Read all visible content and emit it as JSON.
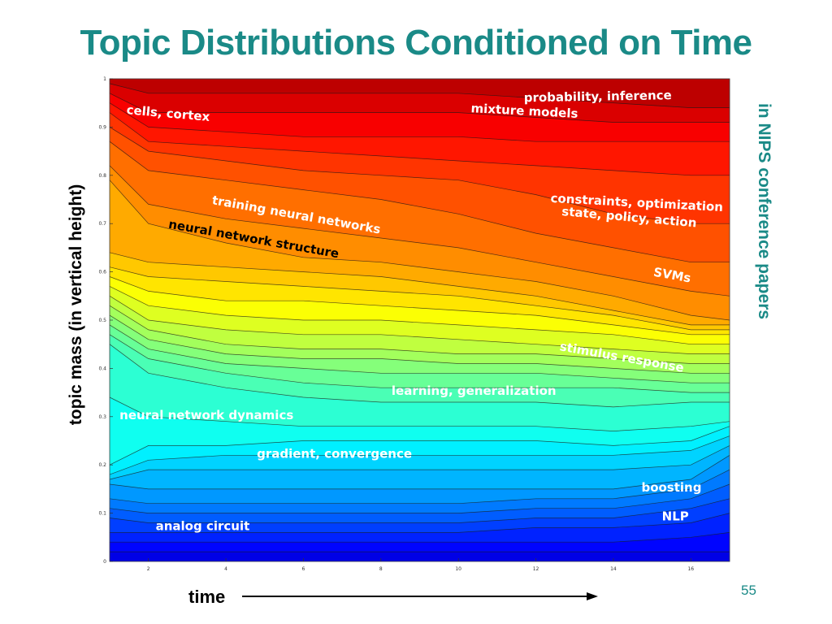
{
  "slide": {
    "title": "Topic Distributions Conditioned on Time",
    "side_note": "in NIPS conference papers",
    "page_number": "55",
    "accent_color": "#1a8a87"
  },
  "chart_data": {
    "type": "area",
    "stacked": true,
    "normalized": true,
    "xlabel": "time",
    "ylabel": "topic mass (in vertical height)",
    "xlim": [
      1,
      17
    ],
    "ylim": [
      0,
      1
    ],
    "x": [
      1,
      2,
      4,
      6,
      8,
      10,
      12,
      14,
      16,
      17
    ],
    "x_ticks": [
      2,
      4,
      6,
      8,
      10,
      12,
      14,
      16
    ],
    "y_ticks": [
      0,
      0.1,
      0.2,
      0.3,
      0.4,
      0.5,
      0.6,
      0.7,
      0.8,
      0.9,
      1
    ],
    "grid": false,
    "colormap": "jet",
    "boundaries": [
      [
        0.02,
        0.02,
        0.02,
        0.02,
        0.02,
        0.02,
        0.02,
        0.02,
        0.02,
        0.02
      ],
      [
        0.04,
        0.04,
        0.04,
        0.04,
        0.04,
        0.04,
        0.04,
        0.04,
        0.05,
        0.06
      ],
      [
        0.06,
        0.06,
        0.06,
        0.06,
        0.06,
        0.06,
        0.07,
        0.07,
        0.08,
        0.1
      ],
      [
        0.09,
        0.08,
        0.08,
        0.08,
        0.08,
        0.08,
        0.09,
        0.09,
        0.11,
        0.13
      ],
      [
        0.11,
        0.1,
        0.1,
        0.1,
        0.1,
        0.1,
        0.11,
        0.11,
        0.13,
        0.16
      ],
      [
        0.13,
        0.12,
        0.12,
        0.12,
        0.12,
        0.12,
        0.13,
        0.13,
        0.15,
        0.19
      ],
      [
        0.16,
        0.15,
        0.15,
        0.15,
        0.15,
        0.15,
        0.15,
        0.15,
        0.17,
        0.22
      ],
      [
        0.17,
        0.19,
        0.19,
        0.19,
        0.19,
        0.19,
        0.19,
        0.19,
        0.2,
        0.24
      ],
      [
        0.18,
        0.21,
        0.22,
        0.22,
        0.22,
        0.22,
        0.22,
        0.22,
        0.23,
        0.26
      ],
      [
        0.2,
        0.24,
        0.24,
        0.25,
        0.25,
        0.25,
        0.25,
        0.24,
        0.25,
        0.28
      ],
      [
        0.34,
        0.3,
        0.29,
        0.28,
        0.28,
        0.28,
        0.28,
        0.27,
        0.28,
        0.29
      ],
      [
        0.45,
        0.39,
        0.36,
        0.34,
        0.33,
        0.33,
        0.33,
        0.32,
        0.33,
        0.33
      ],
      [
        0.47,
        0.42,
        0.39,
        0.37,
        0.36,
        0.36,
        0.36,
        0.36,
        0.35,
        0.35
      ],
      [
        0.49,
        0.44,
        0.41,
        0.4,
        0.39,
        0.39,
        0.39,
        0.38,
        0.37,
        0.37
      ],
      [
        0.51,
        0.46,
        0.43,
        0.42,
        0.42,
        0.41,
        0.41,
        0.4,
        0.39,
        0.39
      ],
      [
        0.53,
        0.48,
        0.45,
        0.44,
        0.44,
        0.43,
        0.43,
        0.42,
        0.41,
        0.41
      ],
      [
        0.55,
        0.5,
        0.48,
        0.47,
        0.47,
        0.46,
        0.45,
        0.44,
        0.43,
        0.43
      ],
      [
        0.57,
        0.53,
        0.51,
        0.5,
        0.5,
        0.49,
        0.48,
        0.47,
        0.45,
        0.45
      ],
      [
        0.59,
        0.56,
        0.54,
        0.54,
        0.53,
        0.52,
        0.51,
        0.49,
        0.47,
        0.47
      ],
      [
        0.61,
        0.59,
        0.58,
        0.57,
        0.56,
        0.55,
        0.53,
        0.51,
        0.48,
        0.48
      ],
      [
        0.64,
        0.62,
        0.61,
        0.6,
        0.59,
        0.57,
        0.55,
        0.52,
        0.49,
        0.49
      ],
      [
        0.79,
        0.7,
        0.66,
        0.63,
        0.62,
        0.6,
        0.58,
        0.55,
        0.51,
        0.5
      ],
      [
        0.82,
        0.74,
        0.71,
        0.69,
        0.67,
        0.65,
        0.62,
        0.59,
        0.56,
        0.55
      ],
      [
        0.87,
        0.81,
        0.79,
        0.77,
        0.75,
        0.72,
        0.68,
        0.65,
        0.62,
        0.62
      ],
      [
        0.9,
        0.85,
        0.83,
        0.81,
        0.8,
        0.79,
        0.76,
        0.72,
        0.7,
        0.7
      ],
      [
        0.93,
        0.87,
        0.86,
        0.85,
        0.84,
        0.83,
        0.82,
        0.81,
        0.8,
        0.8
      ],
      [
        0.95,
        0.9,
        0.89,
        0.88,
        0.88,
        0.88,
        0.87,
        0.87,
        0.87,
        0.87
      ],
      [
        0.97,
        0.93,
        0.93,
        0.93,
        0.93,
        0.93,
        0.92,
        0.91,
        0.91,
        0.91
      ],
      [
        0.99,
        0.97,
        0.97,
        0.97,
        0.97,
        0.97,
        0.96,
        0.95,
        0.94,
        0.94
      ]
    ],
    "annotations": [
      {
        "text": "probability, inference",
        "x": 13.6,
        "y": 0.955,
        "color": "#ffffff",
        "rotate": -1
      },
      {
        "text": "mixture models",
        "x": 11.7,
        "y": 0.925,
        "color": "#ffffff",
        "rotate": 3
      },
      {
        "text": "cells, cortex",
        "x": 2.5,
        "y": 0.92,
        "color": "#ffffff",
        "rotate": 5
      },
      {
        "text": "constraints, optimization",
        "x": 14.6,
        "y": 0.735,
        "color": "#ffffff",
        "rotate": 3
      },
      {
        "text": "state, policy, action",
        "x": 14.4,
        "y": 0.705,
        "color": "#ffffff",
        "rotate": 5
      },
      {
        "text": "training neural networks",
        "x": 5.8,
        "y": 0.71,
        "color": "#ffffff",
        "rotate": 10
      },
      {
        "text": "neural network structure",
        "x": 4.7,
        "y": 0.66,
        "color": "#000000",
        "rotate": 10
      },
      {
        "text": "SVMs",
        "x": 15.5,
        "y": 0.585,
        "color": "#ffffff",
        "rotate": 10
      },
      {
        "text": "stimulus response",
        "x": 14.2,
        "y": 0.415,
        "color": "#ffffff",
        "rotate": 10
      },
      {
        "text": "learning, generalization",
        "x": 10.4,
        "y": 0.345,
        "color": "#ffffff",
        "rotate": 0
      },
      {
        "text": "neural network dynamics",
        "x": 3.5,
        "y": 0.295,
        "color": "#ffffff",
        "rotate": 0
      },
      {
        "text": "gradient, convergence",
        "x": 6.8,
        "y": 0.215,
        "color": "#ffffff",
        "rotate": 0
      },
      {
        "text": "boosting",
        "x": 15.5,
        "y": 0.145,
        "color": "#ffffff",
        "rotate": 0
      },
      {
        "text": "NLP",
        "x": 15.6,
        "y": 0.085,
        "color": "#ffffff",
        "rotate": 0
      },
      {
        "text": "analog circuit",
        "x": 3.4,
        "y": 0.065,
        "color": "#ffffff",
        "rotate": 0
      }
    ]
  }
}
